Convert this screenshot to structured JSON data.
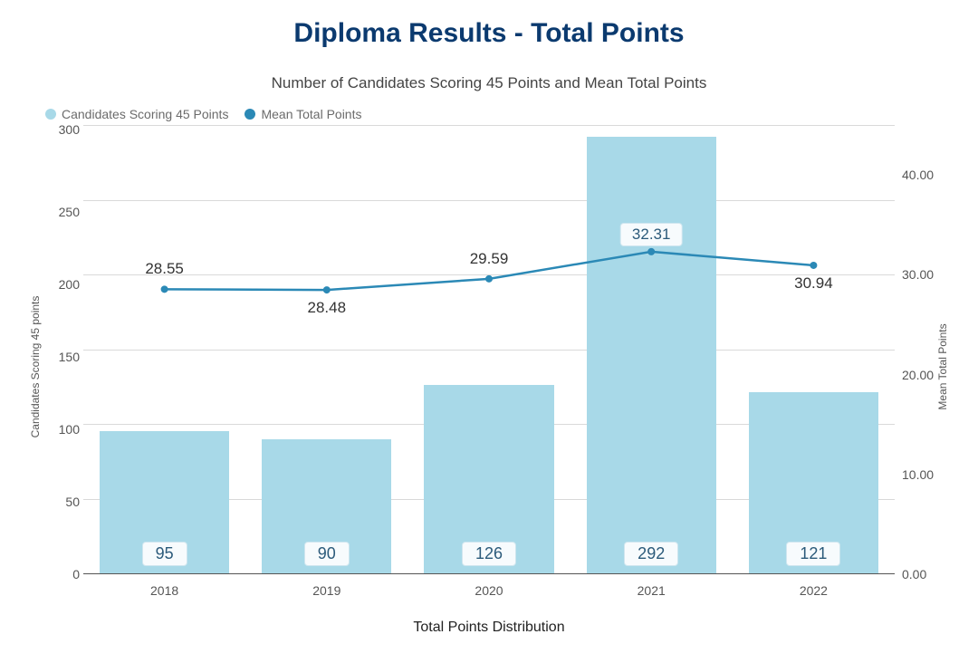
{
  "title": "Diploma Results - Total Points",
  "subtitle": "Number of Candidates Scoring 45 Points and Mean Total Points",
  "legend": {
    "bars": "Candidates Scoring 45 Points",
    "line": "Mean Total Points"
  },
  "y_left": {
    "label": "Candidates Scoring 45 points",
    "max": 300,
    "ticks": [
      "300",
      "250",
      "200",
      "150",
      "100",
      "50",
      "0"
    ],
    "grid_at": [
      300,
      250,
      200,
      150,
      100,
      50
    ]
  },
  "y_right": {
    "label": "Mean Total Points",
    "max": 45,
    "ticks": [
      "",
      "40.00",
      "30.00",
      "20.00",
      "10.00",
      "0.00"
    ],
    "tick_values": [
      45,
      40,
      30,
      20,
      10,
      0
    ]
  },
  "x": {
    "categories": [
      "2018",
      "2019",
      "2020",
      "2021",
      "2022"
    ]
  },
  "bars": {
    "values": [
      95,
      90,
      126,
      292,
      121
    ],
    "color": "#a8d9e8",
    "value_label_bg": "#f7fbfd",
    "value_label_border": "#cfe6ef",
    "value_label_text": "#2b5a7a",
    "width_pct": 80
  },
  "line": {
    "values": [
      28.55,
      28.48,
      29.59,
      32.31,
      30.94
    ],
    "labels": [
      "28.55",
      "28.48",
      "29.59",
      "32.31",
      "30.94"
    ],
    "label_offsets": [
      "above",
      "below",
      "above",
      "above-boxed",
      "below"
    ],
    "color": "#2b89b6",
    "stroke_width": 2.5,
    "marker_radius": 4
  },
  "colors": {
    "title": "#0b3a6f",
    "text": "#555555",
    "axis": "#555555",
    "grid": "#d9d9d9",
    "background": "#ffffff"
  },
  "bottom_title": "Total Points Distribution",
  "typography": {
    "title_fontsize": 30,
    "subtitle_fontsize": 17,
    "tick_fontsize": 14,
    "axis_label_fontsize": 12,
    "bar_label_fontsize": 18,
    "point_label_fontsize": 17,
    "bottom_title_fontsize": 16,
    "font_family": "Arial"
  }
}
